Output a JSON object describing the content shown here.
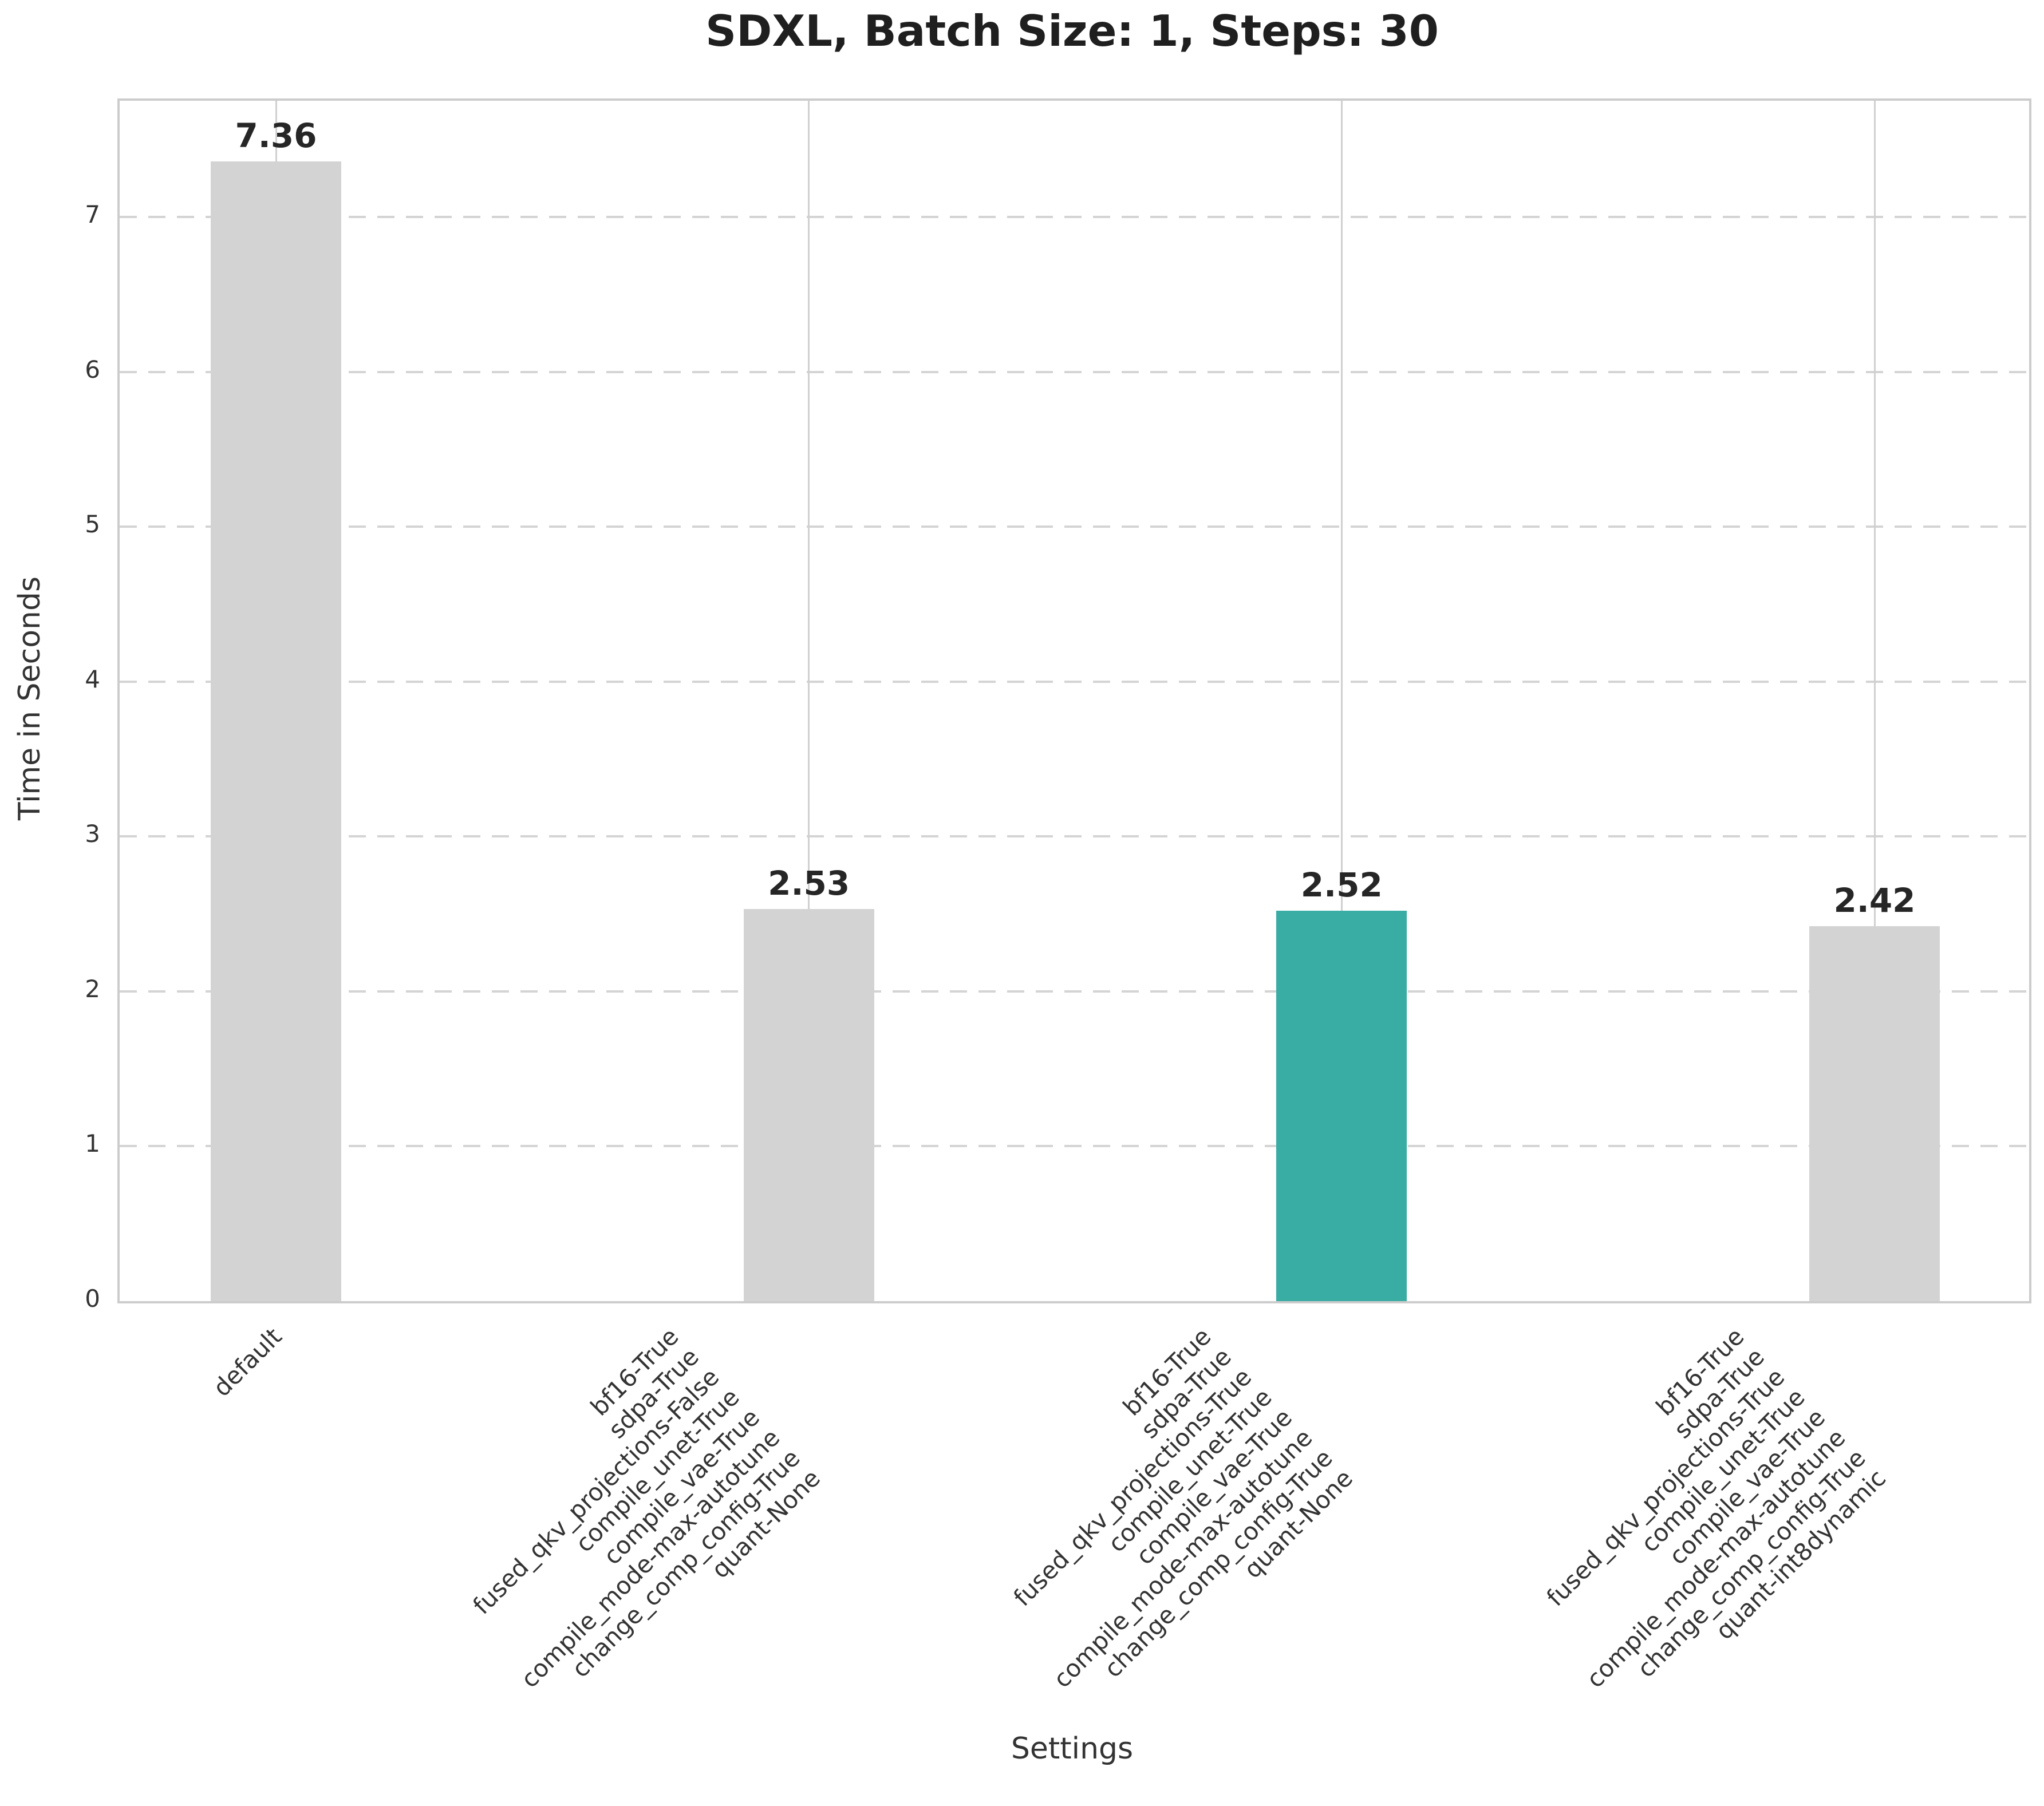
{
  "title": "SDXL, Batch Size: 1, Steps: 30",
  "chart_data": {
    "type": "bar",
    "title": "SDXL, Batch Size: 1, Steps: 30",
    "xlabel": "Settings",
    "ylabel": "Time in Seconds",
    "ylim": [
      0,
      7.75
    ],
    "yticks": [
      0,
      1,
      2,
      3,
      4,
      5,
      6,
      7
    ],
    "grid": {
      "horizontal_style": "dashed",
      "vertical_style": "solid",
      "axisbelow": true
    },
    "legend_position": "none",
    "categories": [
      [
        "default"
      ],
      [
        "bf16-True",
        "sdpa-True",
        "fused_qkv_projections-False",
        "compile_unet-True",
        "compile_vae-True",
        "compile_mode-max-autotune",
        "change_comp_config-True",
        "quant-None"
      ],
      [
        "bf16-True",
        "sdpa-True",
        "fused_qkv_projections-True",
        "compile_unet-True",
        "compile_vae-True",
        "compile_mode-max-autotune",
        "change_comp_config-True",
        "quant-None"
      ],
      [
        "bf16-True",
        "sdpa-True",
        "fused_qkv_projections-True",
        "compile_unet-True",
        "compile_vae-True",
        "compile_mode-max-autotune",
        "change_comp_config-True",
        "quant-int8dynamic"
      ]
    ],
    "values": [
      7.36,
      2.53,
      2.52,
      2.42
    ],
    "value_labels": [
      "7.36",
      "2.53",
      "2.52",
      "2.42"
    ],
    "bar_colors": [
      "#d3d3d3",
      "#d3d3d3",
      "#39aca4",
      "#d3d3d3"
    ],
    "highlight_index": 2,
    "colors": {
      "bar_default": "#d3d3d3",
      "bar_highlight": "#39aca4",
      "gridline": "#d4d4d4",
      "spine": "#cccccc",
      "text": "#333333",
      "title_text": "#1f1f1f",
      "value_label_text": "#262626",
      "background": "#ffffff"
    }
  }
}
